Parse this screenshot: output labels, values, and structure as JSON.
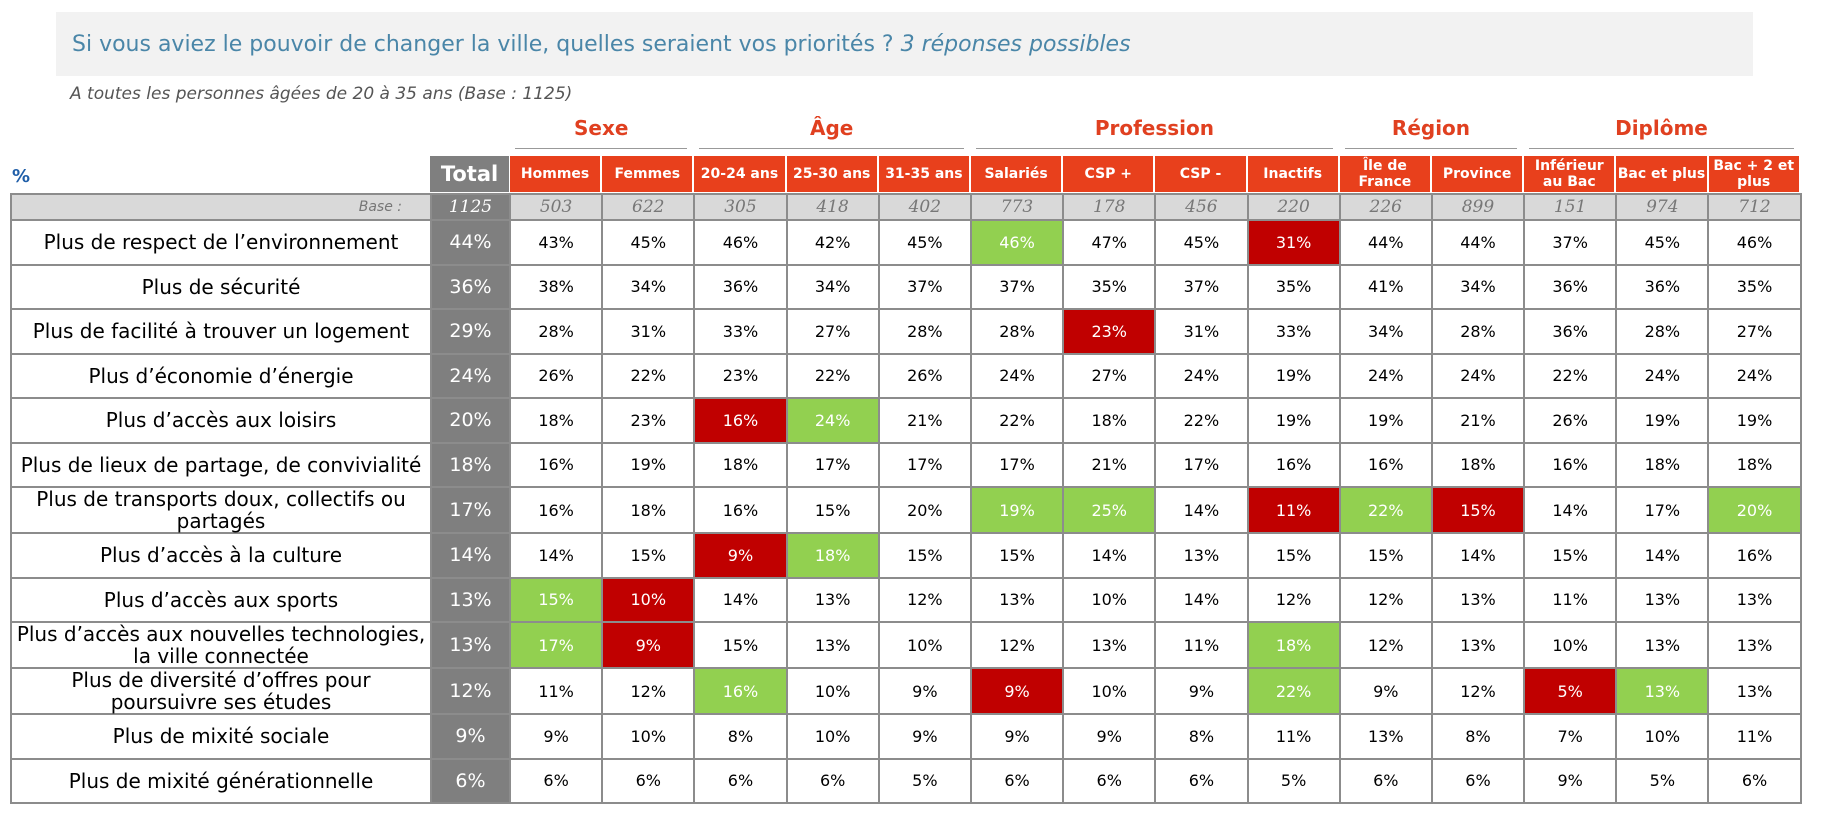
{
  "title_main": "Si vous aviez le pouvoir de changer la ville, quelles seraient vos priorités ?",
  "title_note": "3 réponses possibles",
  "base_note": "A toutes les personnes âgées de 20 à 35 ans (Base : 1125)",
  "unit_label": "%",
  "total_label": "Total",
  "base_label": "Base :",
  "groups": [
    "Sexe",
    "Âge",
    "Profession",
    "Région",
    "Diplôme"
  ],
  "columns": [
    "Hommes",
    "Femmes",
    "20-24 ans",
    "25-30 ans",
    "31-35 ans",
    "Salariés",
    "CSP +",
    "CSP -",
    "Inactifs",
    "Île de France",
    "Province",
    "Inférieur au Bac",
    "Bac et plus",
    "Bac + 2 et plus"
  ],
  "colors": {
    "header": "#e8401c",
    "total": "#7f7f7f",
    "above": "#92d050",
    "below": "#c00000",
    "title": "#4a86a8"
  },
  "chart_data": {
    "type": "table",
    "base": {
      "total": "1125",
      "values": [
        "503",
        "622",
        "305",
        "418",
        "402",
        "773",
        "178",
        "456",
        "220",
        "226",
        "899",
        "151",
        "974",
        "712"
      ]
    },
    "rows": [
      {
        "label": "Plus de respect de l’environnement",
        "total": "44%",
        "values": [
          "43%",
          "45%",
          "46%",
          "42%",
          "45%",
          "46%",
          "47%",
          "45%",
          "31%",
          "44%",
          "44%",
          "37%",
          "45%",
          "46%"
        ],
        "marks": [
          "",
          "",
          "",
          "",
          "",
          "hi",
          "",
          "",
          "lo",
          "",
          "",
          "",
          "",
          ""
        ]
      },
      {
        "label": "Plus de sécurité",
        "total": "36%",
        "values": [
          "38%",
          "34%",
          "36%",
          "34%",
          "37%",
          "37%",
          "35%",
          "37%",
          "35%",
          "41%",
          "34%",
          "36%",
          "36%",
          "35%"
        ],
        "marks": [
          "",
          "",
          "",
          "",
          "",
          "",
          "",
          "",
          "",
          "",
          "",
          "",
          "",
          ""
        ]
      },
      {
        "label": "Plus de facilité à trouver un logement",
        "total": "29%",
        "values": [
          "28%",
          "31%",
          "33%",
          "27%",
          "28%",
          "28%",
          "23%",
          "31%",
          "33%",
          "34%",
          "28%",
          "36%",
          "28%",
          "27%"
        ],
        "marks": [
          "",
          "",
          "",
          "",
          "",
          "",
          "lo",
          "",
          "",
          "",
          "",
          "",
          "",
          ""
        ]
      },
      {
        "label": "Plus d’économie d’énergie",
        "total": "24%",
        "values": [
          "26%",
          "22%",
          "23%",
          "22%",
          "26%",
          "24%",
          "27%",
          "24%",
          "19%",
          "24%",
          "24%",
          "22%",
          "24%",
          "24%"
        ],
        "marks": [
          "",
          "",
          "",
          "",
          "",
          "",
          "",
          "",
          "",
          "",
          "",
          "",
          "",
          ""
        ]
      },
      {
        "label": "Plus d’accès aux loisirs",
        "total": "20%",
        "values": [
          "18%",
          "23%",
          "16%",
          "24%",
          "21%",
          "22%",
          "18%",
          "22%",
          "19%",
          "19%",
          "21%",
          "26%",
          "19%",
          "19%"
        ],
        "marks": [
          "",
          "",
          "lo",
          "hi",
          "",
          "",
          "",
          "",
          "",
          "",
          "",
          "",
          "",
          ""
        ]
      },
      {
        "label": "Plus de lieux de partage, de convivialité",
        "total": "18%",
        "values": [
          "16%",
          "19%",
          "18%",
          "17%",
          "17%",
          "17%",
          "21%",
          "17%",
          "16%",
          "16%",
          "18%",
          "16%",
          "18%",
          "18%"
        ],
        "marks": [
          "",
          "",
          "",
          "",
          "",
          "",
          "",
          "",
          "",
          "",
          "",
          "",
          "",
          ""
        ]
      },
      {
        "label": "Plus de transports doux, collectifs ou partagés",
        "total": "17%",
        "values": [
          "16%",
          "18%",
          "16%",
          "15%",
          "20%",
          "19%",
          "25%",
          "14%",
          "11%",
          "22%",
          "15%",
          "14%",
          "17%",
          "20%"
        ],
        "marks": [
          "",
          "",
          "",
          "",
          "",
          "hi",
          "hi",
          "",
          "lo",
          "hi",
          "lo",
          "",
          "",
          "hi"
        ]
      },
      {
        "label": "Plus d’accès à la culture",
        "total": "14%",
        "values": [
          "14%",
          "15%",
          "9%",
          "18%",
          "15%",
          "15%",
          "14%",
          "13%",
          "15%",
          "15%",
          "14%",
          "15%",
          "14%",
          "16%"
        ],
        "marks": [
          "",
          "",
          "lo",
          "hi",
          "",
          "",
          "",
          "",
          "",
          "",
          "",
          "",
          "",
          ""
        ]
      },
      {
        "label": "Plus d’accès aux sports",
        "total": "13%",
        "values": [
          "15%",
          "10%",
          "14%",
          "13%",
          "12%",
          "13%",
          "10%",
          "14%",
          "12%",
          "12%",
          "13%",
          "11%",
          "13%",
          "13%"
        ],
        "marks": [
          "hi",
          "lo",
          "",
          "",
          "",
          "",
          "",
          "",
          "",
          "",
          "",
          "",
          "",
          ""
        ]
      },
      {
        "label": "Plus d’accès aux nouvelles technologies, la ville connectée",
        "total": "13%",
        "values": [
          "17%",
          "9%",
          "15%",
          "13%",
          "10%",
          "12%",
          "13%",
          "11%",
          "18%",
          "12%",
          "13%",
          "10%",
          "13%",
          "13%"
        ],
        "marks": [
          "hi",
          "lo",
          "",
          "",
          "",
          "",
          "",
          "",
          "hi",
          "",
          "",
          "",
          "",
          ""
        ]
      },
      {
        "label": "Plus de diversité d’offres pour poursuivre ses études",
        "total": "12%",
        "values": [
          "11%",
          "12%",
          "16%",
          "10%",
          "9%",
          "9%",
          "10%",
          "9%",
          "22%",
          "9%",
          "12%",
          "5%",
          "13%",
          "13%"
        ],
        "marks": [
          "",
          "",
          "hi",
          "",
          "",
          "lo",
          "",
          "",
          "hi",
          "",
          "",
          "lo",
          "hi",
          ""
        ]
      },
      {
        "label": "Plus de mixité sociale",
        "total": "9%",
        "values": [
          "9%",
          "10%",
          "8%",
          "10%",
          "9%",
          "9%",
          "9%",
          "8%",
          "11%",
          "13%",
          "8%",
          "7%",
          "10%",
          "11%"
        ],
        "marks": [
          "",
          "",
          "",
          "",
          "",
          "",
          "",
          "",
          "",
          "",
          "",
          "",
          "",
          ""
        ]
      },
      {
        "label": "Plus de mixité générationnelle",
        "total": "6%",
        "values": [
          "6%",
          "6%",
          "6%",
          "6%",
          "5%",
          "6%",
          "6%",
          "6%",
          "5%",
          "6%",
          "6%",
          "9%",
          "5%",
          "6%"
        ],
        "marks": [
          "",
          "",
          "",
          "",
          "",
          "",
          "",
          "",
          "",
          "",
          "",
          "",
          "",
          ""
        ]
      }
    ]
  }
}
